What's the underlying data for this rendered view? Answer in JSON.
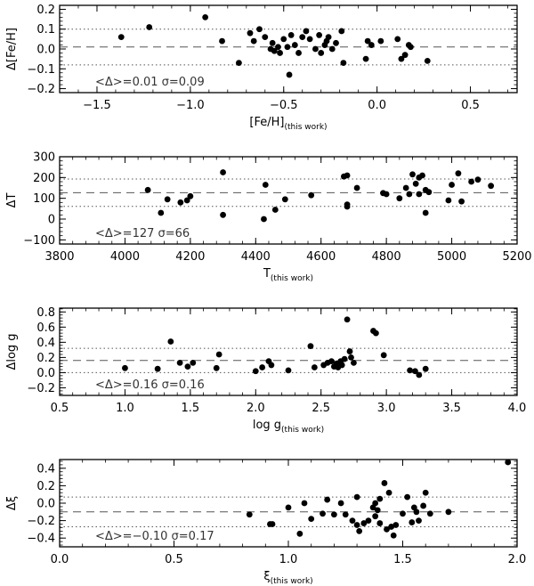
{
  "chart_data": [
    {
      "type": "scatter",
      "ylabel": "Δ[Fe/H]",
      "xlabel": "[Fe/H]",
      "xlabel_sub": "(this work)",
      "xlim": [
        -1.7,
        0.75
      ],
      "ylim": [
        -0.22,
        0.22
      ],
      "xticks": [
        -1.5,
        -1.0,
        -0.5,
        0.0,
        0.5
      ],
      "xtick_labels": [
        "−1.5",
        "−1.0",
        "−0.5",
        "0.0",
        "0.5"
      ],
      "yticks": [
        -0.2,
        -0.1,
        0.0,
        0.1,
        0.2
      ],
      "ytick_labels": [
        "−0.2",
        "−0.1",
        "0.0",
        "0.1",
        "0.2"
      ],
      "mean": 0.01,
      "sigma": 0.09,
      "annotation": "<Δ>=0.01  σ=0.09",
      "points": [
        [
          -1.37,
          0.06
        ],
        [
          -1.22,
          0.11
        ],
        [
          -0.92,
          0.16
        ],
        [
          -0.83,
          0.04
        ],
        [
          -0.74,
          -0.07
        ],
        [
          -0.68,
          0.08
        ],
        [
          -0.66,
          0.04
        ],
        [
          -0.63,
          0.1
        ],
        [
          -0.6,
          0.06
        ],
        [
          -0.57,
          0.0
        ],
        [
          -0.56,
          0.03
        ],
        [
          -0.55,
          -0.01
        ],
        [
          -0.53,
          0.01
        ],
        [
          -0.52,
          -0.02
        ],
        [
          -0.5,
          0.05
        ],
        [
          -0.48,
          0.01
        ],
        [
          -0.47,
          -0.13
        ],
        [
          -0.46,
          0.07
        ],
        [
          -0.44,
          0.02
        ],
        [
          -0.42,
          -0.02
        ],
        [
          -0.4,
          0.06
        ],
        [
          -0.38,
          0.09
        ],
        [
          -0.36,
          0.05
        ],
        [
          -0.33,
          0.0
        ],
        [
          -0.31,
          0.07
        ],
        [
          -0.3,
          -0.02
        ],
        [
          -0.28,
          0.02
        ],
        [
          -0.27,
          0.04
        ],
        [
          -0.26,
          0.06
        ],
        [
          -0.24,
          0.0
        ],
        [
          -0.22,
          0.03
        ],
        [
          -0.19,
          0.09
        ],
        [
          -0.18,
          -0.07
        ],
        [
          -0.06,
          -0.05
        ],
        [
          -0.05,
          0.04
        ],
        [
          -0.03,
          0.02
        ],
        [
          0.02,
          0.04
        ],
        [
          0.11,
          0.05
        ],
        [
          0.13,
          -0.05
        ],
        [
          0.15,
          -0.03
        ],
        [
          0.17,
          0.02
        ],
        [
          0.18,
          0.01
        ],
        [
          0.27,
          -0.06
        ]
      ]
    },
    {
      "type": "scatter",
      "ylabel": "ΔT",
      "xlabel": "T",
      "xlabel_sub": "(this work)",
      "xlim": [
        3800,
        5200
      ],
      "ylim": [
        -120,
        300
      ],
      "xticks": [
        3800,
        4000,
        4200,
        4400,
        4600,
        4800,
        5000,
        5200
      ],
      "xtick_labels": [
        "3800",
        "4000",
        "4200",
        "4400",
        "4600",
        "4800",
        "5000",
        "5200"
      ],
      "yticks": [
        -100,
        0,
        100,
        200,
        300
      ],
      "ytick_labels": [
        "−100",
        "0",
        "100",
        "200",
        "300"
      ],
      "mean": 127,
      "sigma": 66,
      "annotation": "<Δ>=127  σ=66",
      "points": [
        [
          4070,
          140
        ],
        [
          4110,
          30
        ],
        [
          4130,
          95
        ],
        [
          4170,
          80
        ],
        [
          4190,
          90
        ],
        [
          4200,
          110
        ],
        [
          4300,
          225
        ],
        [
          4300,
          20
        ],
        [
          4425,
          0
        ],
        [
          4430,
          165
        ],
        [
          4460,
          45
        ],
        [
          4490,
          95
        ],
        [
          4570,
          115
        ],
        [
          4670,
          205
        ],
        [
          4680,
          210
        ],
        [
          4680,
          70
        ],
        [
          4680,
          60
        ],
        [
          4710,
          150
        ],
        [
          4790,
          125
        ],
        [
          4800,
          120
        ],
        [
          4840,
          100
        ],
        [
          4860,
          150
        ],
        [
          4870,
          120
        ],
        [
          4880,
          215
        ],
        [
          4890,
          170
        ],
        [
          4900,
          200
        ],
        [
          4900,
          120
        ],
        [
          4910,
          210
        ],
        [
          4920,
          30
        ],
        [
          4920,
          140
        ],
        [
          4930,
          130
        ],
        [
          4990,
          90
        ],
        [
          5000,
          165
        ],
        [
          5020,
          220
        ],
        [
          5030,
          85
        ],
        [
          5060,
          180
        ],
        [
          5080,
          190
        ],
        [
          5120,
          160
        ]
      ]
    },
    {
      "type": "scatter",
      "ylabel": "Δlog g",
      "xlabel": "log g",
      "xlabel_sub": "(this work)",
      "xlim": [
        0.5,
        4.0
      ],
      "ylim": [
        -0.3,
        0.85
      ],
      "xticks": [
        0.5,
        1.0,
        1.5,
        2.0,
        2.5,
        3.0,
        3.5,
        4.0
      ],
      "xtick_labels": [
        "0.5",
        "1.0",
        "1.5",
        "2.0",
        "2.5",
        "3.0",
        "3.5",
        "4.0"
      ],
      "yticks": [
        -0.2,
        0.0,
        0.2,
        0.4,
        0.6,
        0.8
      ],
      "ytick_labels": [
        "−0.2",
        "0.0",
        "0.2",
        "0.4",
        "0.6",
        "0.8"
      ],
      "mean": 0.16,
      "sigma": 0.16,
      "annotation": "<Δ>=0.16  σ=0.16",
      "points": [
        [
          1.0,
          0.06
        ],
        [
          1.25,
          0.05
        ],
        [
          1.35,
          0.41
        ],
        [
          1.42,
          0.13
        ],
        [
          1.48,
          0.08
        ],
        [
          1.52,
          0.13
        ],
        [
          1.7,
          0.06
        ],
        [
          1.72,
          0.24
        ],
        [
          2.0,
          0.02
        ],
        [
          2.05,
          0.07
        ],
        [
          2.1,
          0.15
        ],
        [
          2.12,
          0.1
        ],
        [
          2.25,
          0.03
        ],
        [
          2.42,
          0.35
        ],
        [
          2.45,
          0.07
        ],
        [
          2.52,
          0.1
        ],
        [
          2.55,
          0.13
        ],
        [
          2.58,
          0.15
        ],
        [
          2.6,
          0.08
        ],
        [
          2.62,
          0.12
        ],
        [
          2.63,
          0.07
        ],
        [
          2.65,
          0.15
        ],
        [
          2.66,
          0.1
        ],
        [
          2.68,
          0.18
        ],
        [
          2.7,
          0.7
        ],
        [
          2.72,
          0.28
        ],
        [
          2.73,
          0.2
        ],
        [
          2.75,
          0.13
        ],
        [
          2.9,
          0.55
        ],
        [
          2.92,
          0.52
        ],
        [
          2.98,
          0.23
        ],
        [
          3.18,
          0.03
        ],
        [
          3.22,
          0.02
        ],
        [
          3.25,
          -0.03
        ],
        [
          3.3,
          0.05
        ]
      ]
    },
    {
      "type": "scatter",
      "ylabel": "Δξ",
      "xlabel": "ξ",
      "xlabel_sub": "(this work)",
      "xlim": [
        0.0,
        2.0
      ],
      "ylim": [
        -0.5,
        0.5
      ],
      "xticks": [
        0.0,
        0.5,
        1.0,
        1.5,
        2.0
      ],
      "xtick_labels": [
        "0.0",
        "0.5",
        "1.0",
        "1.5",
        "2.0"
      ],
      "yticks": [
        -0.4,
        -0.2,
        0.0,
        0.2,
        0.4
      ],
      "ytick_labels": [
        "−0.4",
        "−0.2",
        "0.0",
        "0.2",
        "0.4"
      ],
      "mean": -0.1,
      "sigma": 0.17,
      "annotation": "<Δ>=−0.10  σ=0.17",
      "points": [
        [
          0.83,
          -0.13
        ],
        [
          0.92,
          -0.24
        ],
        [
          0.93,
          -0.24
        ],
        [
          1.0,
          -0.05
        ],
        [
          1.05,
          -0.35
        ],
        [
          1.07,
          0.0
        ],
        [
          1.1,
          -0.18
        ],
        [
          1.15,
          -0.12
        ],
        [
          1.17,
          0.04
        ],
        [
          1.2,
          -0.13
        ],
        [
          1.23,
          0.0
        ],
        [
          1.25,
          -0.13
        ],
        [
          1.28,
          -0.2
        ],
        [
          1.3,
          0.07
        ],
        [
          1.3,
          -0.25
        ],
        [
          1.31,
          -0.32
        ],
        [
          1.33,
          -0.23
        ],
        [
          1.35,
          -0.2
        ],
        [
          1.37,
          -0.05
        ],
        [
          1.38,
          -0.15
        ],
        [
          1.38,
          0.0
        ],
        [
          1.39,
          -0.08
        ],
        [
          1.4,
          0.05
        ],
        [
          1.4,
          -0.23
        ],
        [
          1.42,
          0.23
        ],
        [
          1.43,
          -0.3
        ],
        [
          1.44,
          0.12
        ],
        [
          1.45,
          -0.27
        ],
        [
          1.46,
          -0.37
        ],
        [
          1.47,
          -0.25
        ],
        [
          1.5,
          -0.12
        ],
        [
          1.52,
          0.07
        ],
        [
          1.54,
          -0.22
        ],
        [
          1.55,
          -0.05
        ],
        [
          1.56,
          -0.1
        ],
        [
          1.57,
          -0.2
        ],
        [
          1.59,
          -0.03
        ],
        [
          1.6,
          0.12
        ],
        [
          1.62,
          -0.12
        ],
        [
          1.7,
          -0.1
        ],
        [
          1.96,
          0.47
        ]
      ]
    }
  ]
}
